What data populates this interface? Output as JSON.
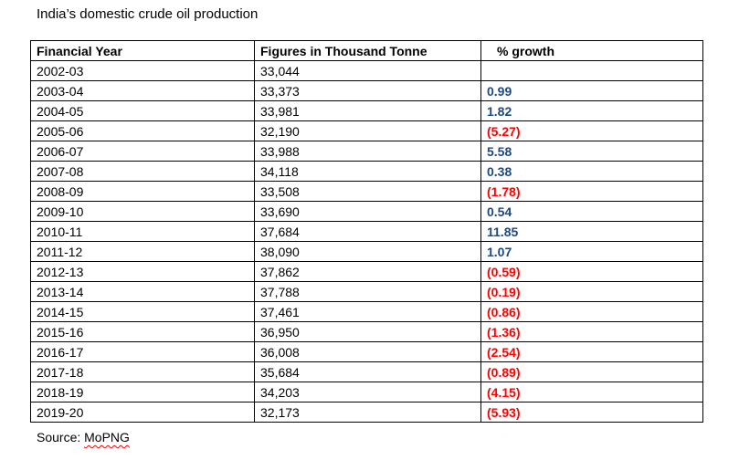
{
  "title": "India’s domestic crude oil production",
  "table": {
    "headers": [
      "Financial Year",
      "Figures in Thousand Tonne",
      "% growth"
    ],
    "rows": [
      {
        "year": "2002-03",
        "figure": "33,044",
        "growth": "",
        "sign": "none"
      },
      {
        "year": "2003-04",
        "figure": "33,373",
        "growth": "0.99",
        "sign": "pos"
      },
      {
        "year": "2004-05",
        "figure": "33,981",
        "growth": "1.82",
        "sign": "pos"
      },
      {
        "year": "2005-06",
        "figure": "32,190",
        "growth": "(5.27)",
        "sign": "neg"
      },
      {
        "year": "2006-07",
        "figure": "33,988",
        "growth": "5.58",
        "sign": "pos"
      },
      {
        "year": "2007-08",
        "figure": "34,118",
        "growth": "0.38",
        "sign": "pos"
      },
      {
        "year": "2008-09",
        "figure": "33,508",
        "growth": "(1.78)",
        "sign": "neg"
      },
      {
        "year": "2009-10",
        "figure": "33,690",
        "growth": "0.54",
        "sign": "pos"
      },
      {
        "year": "2010-11",
        "figure": "37,684",
        "growth": "11.85",
        "sign": "pos"
      },
      {
        "year": "2011-12",
        "figure": "38,090",
        "growth": "1.07",
        "sign": "pos"
      },
      {
        "year": "2012-13",
        "figure": "37,862",
        "growth": "(0.59)",
        "sign": "neg"
      },
      {
        "year": "2013-14",
        "figure": "37,788",
        "growth": "(0.19)",
        "sign": "neg"
      },
      {
        "year": "2014-15",
        "figure": "37,461",
        "growth": "(0.86)",
        "sign": "neg"
      },
      {
        "year": "2015-16",
        "figure": "36,950",
        "growth": "(1.36)",
        "sign": "neg"
      },
      {
        "year": "2016-17",
        "figure": "36,008",
        "growth": "(2.54)",
        "sign": "neg"
      },
      {
        "year": "2017-18",
        "figure": "35,684",
        "growth": "(0.89)",
        "sign": "neg"
      },
      {
        "year": "2018-19",
        "figure": "34,203",
        "growth": "(4.15)",
        "sign": "neg"
      },
      {
        "year": "2019-20",
        "figure": "32,173",
        "growth": "(5.93)",
        "sign": "neg"
      }
    ]
  },
  "source": {
    "label": "Source: ",
    "name": "MoPNG"
  },
  "colors": {
    "positive_growth": "#1f497d",
    "negative_growth": "#ff0000",
    "border": "#000000"
  }
}
